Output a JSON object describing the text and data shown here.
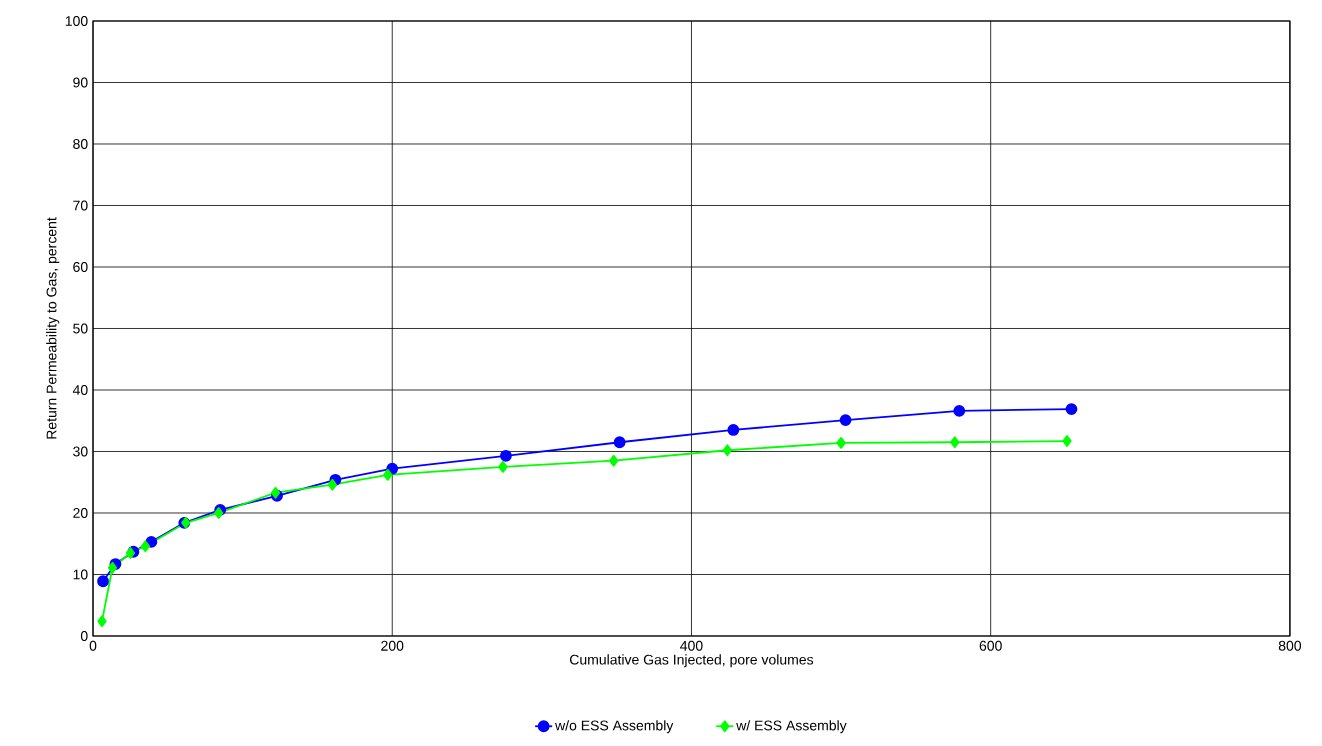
{
  "chart_data": {
    "type": "line",
    "xlabel": "Cumulative Gas Injected, pore volumes",
    "ylabel": "Return Permeability to Gas, percent",
    "xlim": [
      0,
      800
    ],
    "xticks": [
      0,
      200,
      400,
      600,
      800
    ],
    "ylim": [
      0,
      100
    ],
    "yticks": [
      0,
      10,
      20,
      30,
      40,
      50,
      60,
      70,
      80,
      90,
      100
    ],
    "grid": true,
    "legend": "bottom",
    "series": [
      {
        "name": "w/o ESS Assembly",
        "color": "#0000ff",
        "marker": "circle",
        "x": [
          6.7,
          15,
          27,
          39,
          61,
          85,
          123,
          162,
          200,
          276,
          352,
          428,
          503,
          579,
          654
        ],
        "values": [
          8.9,
          11.7,
          13.7,
          15.3,
          18.4,
          20.5,
          22.8,
          25.4,
          27.2,
          29.3,
          31.5,
          33.5,
          35.1,
          36.6,
          36.9
        ]
      },
      {
        "name": "w/ ESS Assembly",
        "color": "#00ff00",
        "marker": "diamond",
        "x": [
          6,
          13,
          25,
          35,
          62,
          84,
          122,
          160,
          197,
          274,
          348,
          424,
          500,
          576,
          651
        ],
        "values": [
          2.4,
          11.1,
          13.5,
          14.6,
          18.4,
          20.0,
          23.3,
          24.6,
          26.2,
          27.5,
          28.5,
          30.2,
          31.4,
          31.5,
          31.7
        ]
      }
    ]
  }
}
